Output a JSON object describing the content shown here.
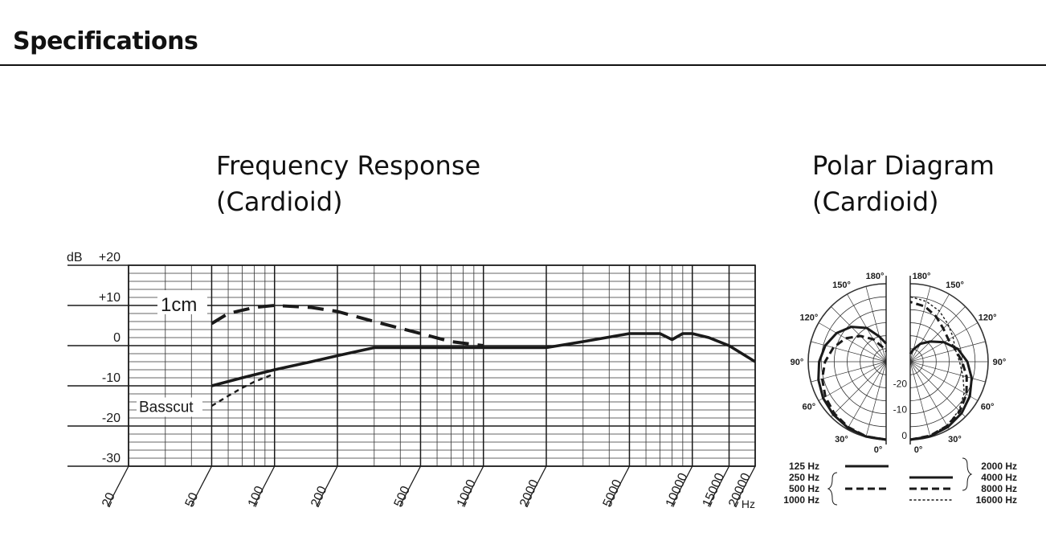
{
  "page": {
    "title": "Specifications"
  },
  "colors": {
    "ink": "#1a1a1a",
    "grid": "#333333",
    "background": "#ffffff"
  },
  "chart_data": [
    {
      "type": "line",
      "title": "Frequency Response",
      "subtitle": "(Cardioid)",
      "scale_x": "log",
      "xlim": [
        20,
        20000
      ],
      "ylim": [
        -30,
        20
      ],
      "grid": true,
      "ylabel": "dB",
      "xunit": "Hz",
      "x_ticks": [
        20,
        50,
        100,
        200,
        500,
        1000,
        2000,
        5000,
        10000,
        15000,
        20000
      ],
      "x_tick_labels": [
        "20",
        "50",
        "100",
        "200",
        "500",
        "1000",
        "2000",
        "5000",
        "10000",
        "15000",
        "20000"
      ],
      "y_ticks": [
        20,
        10,
        0,
        -10,
        -20,
        -30
      ],
      "y_tick_labels": [
        "+20",
        "+10",
        "0",
        "-10",
        "-20",
        "-30"
      ],
      "series": [
        {
          "name": "",
          "style": "solid",
          "x": [
            50,
            70,
            100,
            150,
            200,
            300,
            500,
            1000,
            2000,
            3000,
            5000,
            7000,
            8000,
            9000,
            10000,
            12000,
            15000,
            20000
          ],
          "y": [
            -10,
            -8,
            -6,
            -4,
            -2.5,
            -0.5,
            -0.5,
            -0.5,
            -0.5,
            1,
            3,
            3,
            1.5,
            3,
            3,
            2,
            0,
            -4
          ]
        },
        {
          "name": "1cm",
          "style": "dashed",
          "x": [
            50,
            60,
            80,
            100,
            150,
            200,
            300,
            500,
            700,
            1000
          ],
          "y": [
            5.5,
            8,
            9.5,
            10,
            9.5,
            8.5,
            6,
            3,
            1,
            0
          ]
        },
        {
          "name": "Basscut",
          "style": "dotted",
          "x": [
            50,
            60,
            70,
            80,
            100
          ],
          "y": [
            -15,
            -12.5,
            -10.5,
            -9,
            -7
          ]
        }
      ]
    },
    {
      "type": "polar",
      "title": "Polar Diagram",
      "subtitle": "(Cardioid)",
      "angle_labels": [
        "0°",
        "30°",
        "60°",
        "90°",
        "120°",
        "150°",
        "180°"
      ],
      "ring_labels": [
        "0",
        "-10",
        "-20"
      ],
      "legend_left": [
        "125 Hz",
        "250 Hz",
        "500 Hz",
        "1000 Hz"
      ],
      "legend_right": [
        "2000 Hz",
        "4000 Hz",
        "8000 Hz",
        "16000 Hz"
      ],
      "series": [
        {
          "name": "125 Hz",
          "side": "left",
          "style": "solid",
          "angles": [
            0,
            15,
            30,
            45,
            60,
            75,
            90,
            105,
            120,
            135,
            150,
            165,
            180
          ],
          "db": [
            0,
            -0.2,
            -0.6,
            -1.2,
            -2,
            -3,
            -4.2,
            -5.8,
            -8,
            -11,
            -15,
            -20,
            -23
          ]
        },
        {
          "name": "500 Hz",
          "side": "left",
          "style": "dashed",
          "angles": [
            0,
            15,
            30,
            45,
            60,
            75,
            90,
            105,
            120,
            135,
            150,
            165,
            180
          ],
          "db": [
            0,
            -0.3,
            -0.9,
            -1.8,
            -3,
            -4.5,
            -6.5,
            -9,
            -12,
            -16,
            -20,
            -24,
            -26
          ]
        },
        {
          "name": "2000 Hz",
          "side": "right",
          "style": "solid",
          "angles": [
            0,
            15,
            30,
            45,
            60,
            75,
            90,
            105,
            120,
            135,
            150,
            165,
            180
          ],
          "db": [
            0,
            -0.3,
            -1,
            -2,
            -3.5,
            -5.5,
            -8,
            -11,
            -15,
            -19,
            -22,
            -25,
            -27
          ]
        },
        {
          "name": "8000 Hz",
          "side": "right",
          "style": "dashed",
          "angles": [
            0,
            15,
            30,
            45,
            60,
            75,
            90,
            105,
            120,
            135,
            150,
            165,
            180
          ],
          "db": [
            0,
            -0.5,
            -1.5,
            -3,
            -5,
            -7.5,
            -10,
            -12,
            -13,
            -12,
            -10,
            -8,
            -7
          ]
        },
        {
          "name": "16000 Hz",
          "side": "right",
          "style": "dotted",
          "angles": [
            0,
            15,
            30,
            45,
            60,
            75,
            90,
            105,
            120,
            135,
            150,
            165,
            180
          ],
          "db": [
            0,
            -0.5,
            -1.7,
            -3.5,
            -6,
            -9,
            -11,
            -12,
            -11,
            -9.5,
            -7.5,
            -6,
            -5
          ]
        }
      ]
    }
  ]
}
